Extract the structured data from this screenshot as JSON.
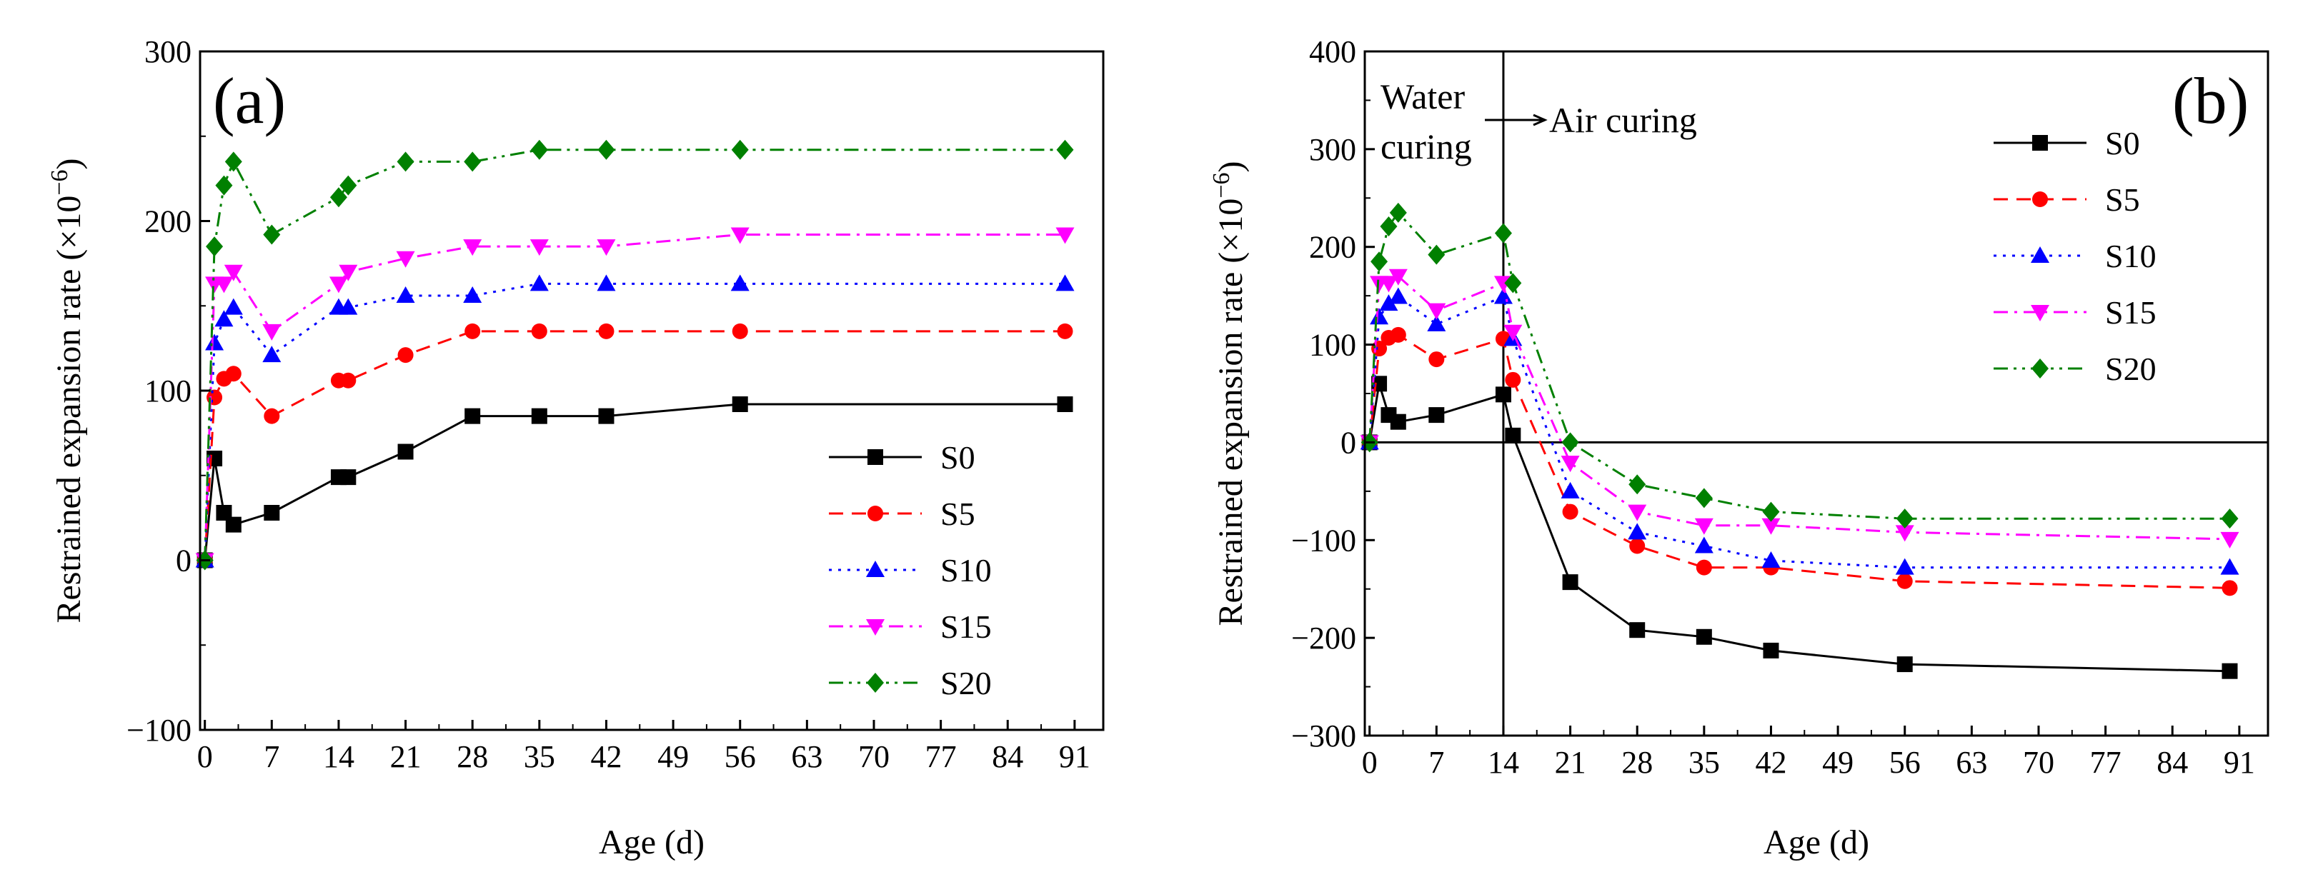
{
  "chart_data": [
    {
      "id": "a",
      "type": "line",
      "panel_label": "(a)",
      "xlabel": "Age (d)",
      "ylabel": "Restrained expansion rate (×10",
      "ylabel_exp": "−6",
      "xlim": [
        -0.5,
        94
      ],
      "ylim": [
        -100,
        300
      ],
      "x_ticks": [
        0,
        7,
        14,
        21,
        28,
        35,
        42,
        49,
        56,
        63,
        70,
        77,
        84,
        91
      ],
      "y_ticks": [
        -100,
        0,
        100,
        200,
        300
      ],
      "legend_position": "bottom-right",
      "x": [
        0,
        1,
        2,
        3,
        7,
        14,
        15,
        21,
        28,
        35,
        42,
        56,
        90
      ],
      "series": [
        {
          "name": "S0",
          "color": "#000000",
          "dash": "solid",
          "marker": "square",
          "values": [
            0,
            60,
            28,
            21,
            28,
            49,
            49,
            64,
            85,
            85,
            85,
            92,
            92
          ]
        },
        {
          "name": "S5",
          "color": "#ff0000",
          "dash": "dash",
          "marker": "circle",
          "values": [
            0,
            96,
            107,
            110,
            85,
            106,
            106,
            121,
            135,
            135,
            135,
            135,
            135
          ]
        },
        {
          "name": "S10",
          "color": "#0000ff",
          "dash": "dot",
          "marker": "triangle-up",
          "values": [
            0,
            128,
            142,
            149,
            121,
            149,
            149,
            156,
            156,
            163,
            163,
            163,
            163
          ]
        },
        {
          "name": "S15",
          "color": "#ff00ff",
          "dash": "dashdot",
          "marker": "triangle-down",
          "values": [
            0,
            163,
            163,
            170,
            135,
            163,
            170,
            178,
            185,
            185,
            185,
            192,
            192
          ]
        },
        {
          "name": "S20",
          "color": "#008000",
          "dash": "dashdotdot",
          "marker": "diamond",
          "values": [
            0,
            185,
            221,
            235,
            192,
            214,
            221,
            235,
            235,
            242,
            242,
            242,
            242
          ]
        }
      ]
    },
    {
      "id": "b",
      "type": "line",
      "panel_label": "(b)",
      "xlabel": "Age (d)",
      "ylabel": "Restrained expansion rate (×10",
      "ylabel_exp": "−6",
      "xlim": [
        -0.5,
        94
      ],
      "ylim": [
        -300,
        400
      ],
      "x_ticks": [
        0,
        7,
        14,
        21,
        28,
        35,
        42,
        49,
        56,
        63,
        70,
        77,
        84,
        91
      ],
      "y_ticks": [
        -300,
        -200,
        -100,
        0,
        100,
        200,
        300,
        400
      ],
      "legend_position": "top-right",
      "reference_lines": {
        "vertical_x": 14,
        "horizontal_y": 0
      },
      "annotations": {
        "left_line1": "Water",
        "left_line2": "curing",
        "arrow_text": "Air curing"
      },
      "x": [
        0,
        1,
        2,
        3,
        7,
        14,
        15,
        21,
        28,
        35,
        42,
        56,
        90
      ],
      "series": [
        {
          "name": "S0",
          "color": "#000000",
          "dash": "solid",
          "marker": "square",
          "values": [
            0,
            60,
            28,
            21,
            28,
            49,
            7,
            -143,
            -192,
            -199,
            -213,
            -227,
            -234
          ]
        },
        {
          "name": "S5",
          "color": "#ff0000",
          "dash": "dash",
          "marker": "circle",
          "values": [
            0,
            96,
            107,
            110,
            85,
            106,
            64,
            -71,
            -106,
            -128,
            -128,
            -142,
            -149
          ]
        },
        {
          "name": "S10",
          "color": "#0000ff",
          "dash": "dot",
          "marker": "triangle-up",
          "values": [
            0,
            128,
            142,
            149,
            121,
            149,
            106,
            -50,
            -92,
            -106,
            -121,
            -128,
            -128
          ]
        },
        {
          "name": "S15",
          "color": "#ff00ff",
          "dash": "dashdot",
          "marker": "triangle-down",
          "values": [
            0,
            163,
            163,
            170,
            135,
            163,
            113,
            -21,
            -71,
            -85,
            -85,
            -92,
            -99
          ]
        },
        {
          "name": "S20",
          "color": "#008000",
          "dash": "dashdotdot",
          "marker": "diamond",
          "values": [
            0,
            185,
            221,
            235,
            192,
            214,
            163,
            0,
            -43,
            -57,
            -71,
            -78,
            -78
          ]
        }
      ]
    }
  ]
}
